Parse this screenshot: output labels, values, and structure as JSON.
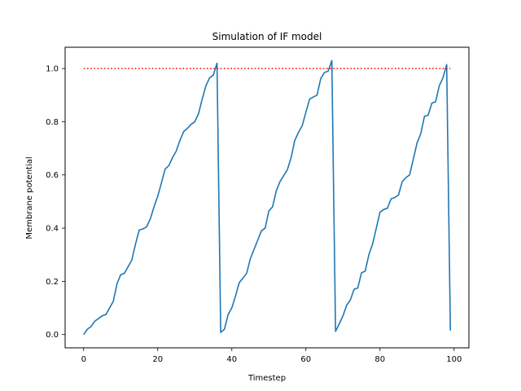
{
  "chart_data": {
    "type": "line",
    "title": "Simulation of IF model",
    "xlabel": "Timestep",
    "ylabel": "Membrane potential",
    "xlim": [
      -5,
      104
    ],
    "ylim": [
      -0.05,
      1.08
    ],
    "xticks": [
      0,
      20,
      40,
      60,
      80,
      100
    ],
    "yticks": [
      0.0,
      0.2,
      0.4,
      0.6,
      0.8,
      1.0
    ],
    "xtick_labels": [
      "0",
      "20",
      "40",
      "60",
      "80",
      "100"
    ],
    "ytick_labels": [
      "0.0",
      "0.2",
      "0.4",
      "0.6",
      "0.8",
      "1.0"
    ],
    "grid": false,
    "series": [
      {
        "color": "#1f77b4",
        "style": "solid",
        "x": [
          0,
          1,
          2,
          3,
          4,
          5,
          6,
          7,
          8,
          9,
          10,
          11,
          12,
          13,
          14,
          15,
          16,
          17,
          18,
          19,
          20,
          21,
          22,
          23,
          24,
          25,
          26,
          27,
          28,
          29,
          30,
          31,
          32,
          33,
          34,
          35,
          36,
          37,
          38,
          39,
          40,
          41,
          42,
          43,
          44,
          45,
          46,
          47,
          48,
          49,
          50,
          51,
          52,
          53,
          54,
          55,
          56,
          57,
          58,
          59,
          60,
          61,
          62,
          63,
          64,
          65,
          66,
          67,
          68,
          69,
          70,
          71,
          72,
          73,
          74,
          75,
          76,
          77,
          78,
          79,
          80,
          81,
          82,
          83,
          84,
          85,
          86,
          87,
          88,
          89,
          90,
          91,
          92,
          93,
          94,
          95,
          96,
          97,
          98,
          99
        ],
        "y": [
          0.0,
          0.02,
          0.03,
          0.05,
          0.06,
          0.07,
          0.075,
          0.1,
          0.125,
          0.19,
          0.225,
          0.23,
          0.255,
          0.28,
          0.34,
          0.393,
          0.397,
          0.405,
          0.435,
          0.48,
          0.52,
          0.57,
          0.622,
          0.635,
          0.665,
          0.69,
          0.73,
          0.763,
          0.775,
          0.79,
          0.8,
          0.83,
          0.885,
          0.935,
          0.965,
          0.975,
          1.02,
          0.008,
          0.02,
          0.075,
          0.1,
          0.145,
          0.195,
          0.212,
          0.23,
          0.285,
          0.32,
          0.355,
          0.39,
          0.4,
          0.465,
          0.48,
          0.54,
          0.575,
          0.597,
          0.62,
          0.665,
          0.73,
          0.76,
          0.785,
          0.836,
          0.885,
          0.893,
          0.9,
          0.962,
          0.985,
          0.99,
          1.03,
          0.012,
          0.04,
          0.07,
          0.11,
          0.13,
          0.17,
          0.175,
          0.232,
          0.238,
          0.3,
          0.34,
          0.4,
          0.46,
          0.47,
          0.475,
          0.51,
          0.515,
          0.525,
          0.575,
          0.59,
          0.6,
          0.66,
          0.72,
          0.755,
          0.82,
          0.825,
          0.87,
          0.875,
          0.935,
          0.965,
          1.015,
          0.015
        ]
      },
      {
        "color": "#ff0000",
        "style": "dotted",
        "x": [
          0,
          99
        ],
        "y": [
          1.0,
          1.0
        ]
      }
    ]
  }
}
